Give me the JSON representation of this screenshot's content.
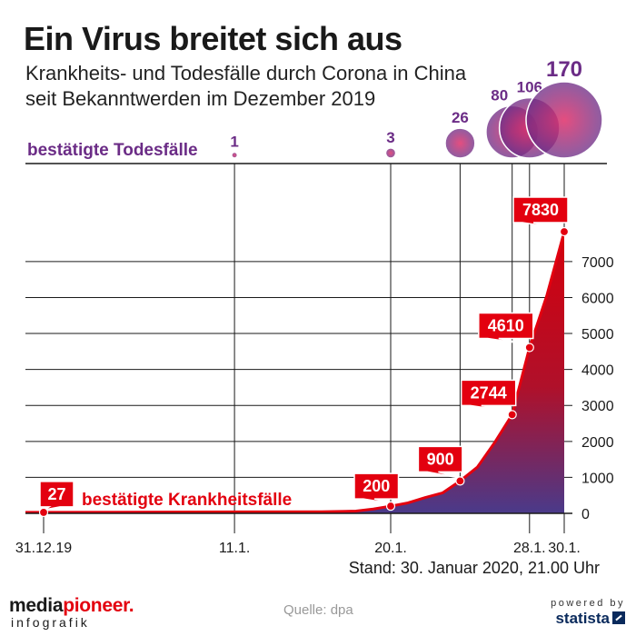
{
  "header": {
    "title": "Ein Virus breitet sich aus",
    "subtitle_line1": "Krankheits- und Todesfälle durch Corona in China",
    "subtitle_line2": "seit Bekanntwerden im Dezember 2019"
  },
  "chart_data": {
    "type": "area",
    "title": "Ein Virus breitet sich aus",
    "cases_label": "bestätigte Krankheitsfälle",
    "deaths_label": "bestätigte Todesfälle",
    "x_tick_labels": [
      "31.12.19",
      "11.1.",
      "20.1.",
      "28.1.",
      "30.1."
    ],
    "y_ticks": [
      0,
      1000,
      2000,
      3000,
      4000,
      5000,
      6000,
      7000
    ],
    "ylim": [
      0,
      7830
    ],
    "cases": {
      "name": "bestätigte Krankheitsfälle",
      "points": [
        {
          "date": "31.12.19",
          "day": 0,
          "value": 27
        },
        {
          "date": "11.1.",
          "day": 11,
          "value": 41
        },
        {
          "date": "16.1.",
          "day": 16,
          "value": 45
        },
        {
          "date": "18.1.",
          "day": 18,
          "value": 62
        },
        {
          "date": "19.1.",
          "day": 19,
          "value": 121
        },
        {
          "date": "20.1.",
          "day": 20,
          "value": 200
        },
        {
          "date": "21.1.",
          "day": 21,
          "value": 291
        },
        {
          "date": "22.1.",
          "day": 22,
          "value": 440
        },
        {
          "date": "23.1.",
          "day": 23,
          "value": 571
        },
        {
          "date": "24.1.",
          "day": 24,
          "value": 900
        },
        {
          "date": "25.1.",
          "day": 25,
          "value": 1287
        },
        {
          "date": "26.1.",
          "day": 26,
          "value": 1975
        },
        {
          "date": "27.1.",
          "day": 27,
          "value": 2744
        },
        {
          "date": "28.1.",
          "day": 28,
          "value": 4610
        },
        {
          "date": "29.1.",
          "day": 29,
          "value": 6061
        },
        {
          "date": "30.1.",
          "day": 30,
          "value": 7830
        }
      ],
      "labeled": [
        {
          "day": 0,
          "value": 27,
          "label": "27"
        },
        {
          "day": 20,
          "value": 200,
          "label": "200"
        },
        {
          "day": 24,
          "value": 900,
          "label": "900"
        },
        {
          "day": 27,
          "value": 2744,
          "label": "2744"
        },
        {
          "day": 28,
          "value": 4610,
          "label": "4610"
        },
        {
          "day": 30,
          "value": 7830,
          "label": "7830"
        }
      ]
    },
    "deaths": {
      "name": "bestätigte Todesfälle",
      "points": [
        {
          "day": 11,
          "value": 1,
          "label": "1"
        },
        {
          "day": 20,
          "value": 3,
          "label": "3"
        },
        {
          "day": 24,
          "value": 26,
          "label": "26"
        },
        {
          "day": 27,
          "value": 80,
          "label": "80"
        },
        {
          "day": 28,
          "value": 106,
          "label": "106"
        },
        {
          "day": 30,
          "value": 170,
          "label": "170"
        }
      ]
    },
    "colors": {
      "case_red": "#e3000f",
      "label_red": "#e3000f",
      "area_top": "#d4000c",
      "area_bottom": "#4a3a8a",
      "death_purple": "#6b2c86",
      "grid": "#1a1a1a"
    }
  },
  "footer": {
    "stand": "Stand: 30. Januar 2020, 21.00 Uhr",
    "logo_main_pre": "media",
    "logo_main_mid": "pioneer",
    "logo_main_post": ".",
    "logo_sub": "infografik",
    "source": "Quelle: dpa",
    "powered_by": "powered by",
    "statista": "statista"
  }
}
